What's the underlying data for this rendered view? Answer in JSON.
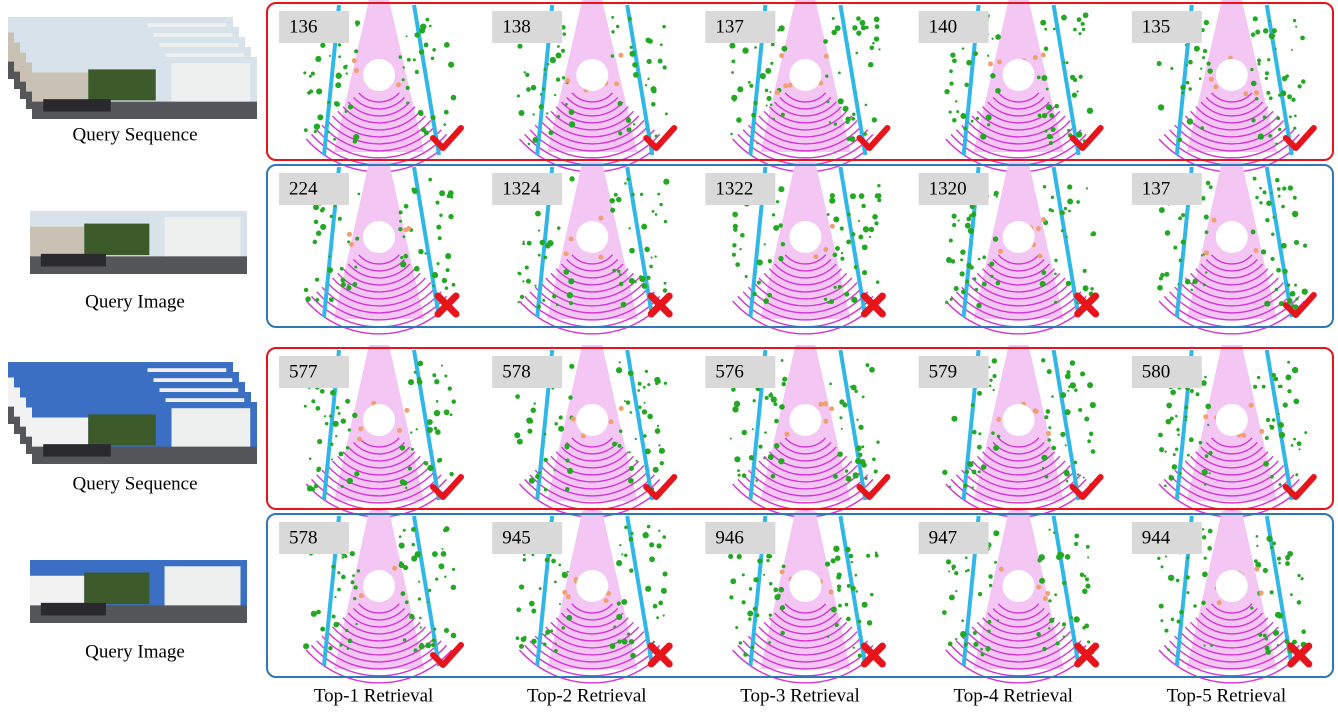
{
  "rows": [
    {
      "query": "Query Sequence",
      "results": [
        {
          "id": 136,
          "match": true
        },
        {
          "id": 138,
          "match": true
        },
        {
          "id": 137,
          "match": true
        },
        {
          "id": 140,
          "match": true
        },
        {
          "id": 135,
          "match": true
        }
      ]
    },
    {
      "query": "Query Image",
      "results": [
        {
          "id": 224,
          "match": false
        },
        {
          "id": 1324,
          "match": false
        },
        {
          "id": 1322,
          "match": false
        },
        {
          "id": 1320,
          "match": false
        },
        {
          "id": 137,
          "match": true
        }
      ]
    },
    {
      "query": "Query Sequence",
      "results": [
        {
          "id": 577,
          "match": true
        },
        {
          "id": 578,
          "match": true
        },
        {
          "id": 576,
          "match": true
        },
        {
          "id": 579,
          "match": true
        },
        {
          "id": 580,
          "match": true
        }
      ]
    },
    {
      "query": "Query Image",
      "results": [
        {
          "id": 578,
          "match": true
        },
        {
          "id": 945,
          "match": false
        },
        {
          "id": 946,
          "match": false
        },
        {
          "id": 947,
          "match": false
        },
        {
          "id": 944,
          "match": false
        }
      ]
    }
  ],
  "column_labels": [
    "Top-1 Retrieval",
    "Top-2 Retrieval",
    "Top-3 Retrieval",
    "Top-4 Retrieval",
    "Top-5 Retrieval"
  ]
}
